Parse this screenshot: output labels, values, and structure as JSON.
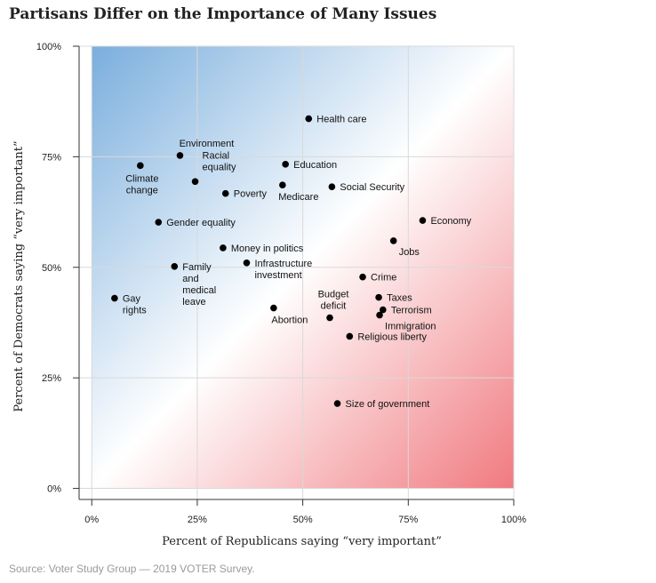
{
  "header": {
    "title": "Partisans Differ on the Importance of Many Issues"
  },
  "footer": {
    "source": "Source: Voter Study Group — 2019 VOTER Survey."
  },
  "chart_data": {
    "type": "scatter",
    "xlabel": "Percent of Republicans saying “very important”",
    "ylabel": "Percent of Democrats saying “very important”",
    "xlim": [
      -3,
      100
    ],
    "ylim": [
      -2.5,
      100
    ],
    "x_ticks": [
      0,
      25,
      50,
      75,
      100
    ],
    "y_ticks": [
      0,
      25,
      50,
      75,
      100
    ],
    "x_tick_labels": [
      "0%",
      "25%",
      "50%",
      "75%",
      "100%"
    ],
    "y_tick_labels": [
      "0%",
      "25%",
      "50%",
      "75%",
      "100%"
    ],
    "grid": true,
    "background": "diagonal gradient: blue (Democrat priority) top-left to red (Republican priority) bottom-right",
    "colors": {
      "dem": "#7aaedd",
      "rep": "#f07a80",
      "point": "#000000",
      "grid": "#d9d9d9"
    },
    "points": [
      {
        "label": [
          "Health care"
        ],
        "x": 51.4,
        "y": 83.6,
        "pos": "right"
      },
      {
        "label": [
          "Environment"
        ],
        "x": 20.9,
        "y": 75.3,
        "pos": "above"
      },
      {
        "label": [
          "Climate",
          "change"
        ],
        "x": 11.5,
        "y": 73.0,
        "pos": "below"
      },
      {
        "label": [
          "Racial",
          "equality"
        ],
        "x": 24.5,
        "y": 69.4,
        "pos": "right-up"
      },
      {
        "label": [
          "Education"
        ],
        "x": 45.9,
        "y": 73.3,
        "pos": "right"
      },
      {
        "label": [
          "Poverty"
        ],
        "x": 31.7,
        "y": 66.7,
        "pos": "right"
      },
      {
        "label": [
          "Medicare"
        ],
        "x": 45.2,
        "y": 68.6,
        "pos": "below"
      },
      {
        "label": [
          "Social Security"
        ],
        "x": 56.9,
        "y": 68.2,
        "pos": "right"
      },
      {
        "label": [
          "Gender equality"
        ],
        "x": 15.8,
        "y": 60.2,
        "pos": "right"
      },
      {
        "label": [
          "Economy"
        ],
        "x": 78.4,
        "y": 60.6,
        "pos": "right"
      },
      {
        "label": [
          "Jobs"
        ],
        "x": 71.5,
        "y": 56.0,
        "pos": "right-down"
      },
      {
        "label": [
          "Money in politics"
        ],
        "x": 31.1,
        "y": 54.4,
        "pos": "right"
      },
      {
        "label": [
          "Family",
          "and",
          "medical",
          "leave"
        ],
        "x": 19.6,
        "y": 50.2,
        "pos": "right-lines"
      },
      {
        "label": [
          "Infrastructure",
          "investment"
        ],
        "x": 36.7,
        "y": 51.0,
        "pos": "right-lines"
      },
      {
        "label": [
          "Crime"
        ],
        "x": 64.2,
        "y": 47.8,
        "pos": "right"
      },
      {
        "label": [
          "Gay",
          "rights"
        ],
        "x": 5.4,
        "y": 43.0,
        "pos": "right-lines"
      },
      {
        "label": [
          "Taxes"
        ],
        "x": 68.0,
        "y": 43.2,
        "pos": "right"
      },
      {
        "label": [
          "Budget",
          "deficit"
        ],
        "x": 56.4,
        "y": 38.6,
        "pos": "above-lines"
      },
      {
        "label": [
          "Abortion"
        ],
        "x": 43.1,
        "y": 40.8,
        "pos": "below"
      },
      {
        "label": [
          "Terrorism"
        ],
        "x": 69.0,
        "y": 40.4,
        "pos": "right"
      },
      {
        "label": [
          "Immigration"
        ],
        "x": 68.2,
        "y": 39.2,
        "pos": "right-down"
      },
      {
        "label": [
          "Religious liberty"
        ],
        "x": 61.1,
        "y": 34.4,
        "pos": "right"
      },
      {
        "label": [
          "Size of government"
        ],
        "x": 58.2,
        "y": 19.2,
        "pos": "right"
      }
    ]
  }
}
